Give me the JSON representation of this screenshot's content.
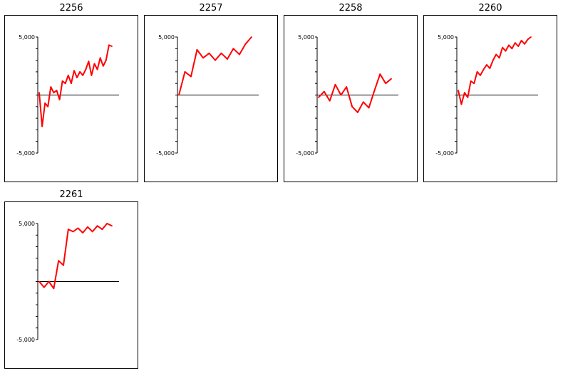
{
  "chart_data": [
    {
      "type": "line",
      "title": "2256",
      "ylim": [
        -5000,
        5000
      ],
      "ytick_labels": [
        "5,000",
        "-5,000"
      ],
      "series": [
        {
          "color": "#ff0000",
          "x": [
            0,
            1,
            2,
            3,
            4,
            5,
            6,
            7,
            8,
            9,
            10,
            11,
            12,
            13,
            14,
            15,
            16,
            17,
            18,
            19,
            20,
            21,
            22,
            23,
            24,
            25
          ],
          "y": [
            200,
            -2700,
            -700,
            -1000,
            700,
            200,
            400,
            -400,
            1200,
            1000,
            1700,
            1000,
            2100,
            1500,
            2000,
            1700,
            2200,
            2900,
            1700,
            2700,
            2200,
            3200,
            2500,
            3000,
            4300,
            4200
          ]
        }
      ]
    },
    {
      "type": "line",
      "title": "2257",
      "ylim": [
        -5000,
        5000
      ],
      "ytick_labels": [
        "5,000",
        "-5,000"
      ],
      "series": [
        {
          "color": "#ff0000",
          "x": [
            0,
            1,
            2,
            3,
            4,
            5,
            6,
            7,
            8,
            9,
            10,
            11,
            12
          ],
          "y": [
            0,
            2000,
            1600,
            3900,
            3200,
            3600,
            3000,
            3600,
            3100,
            4000,
            3500,
            4400,
            5000
          ]
        }
      ]
    },
    {
      "type": "line",
      "title": "2258",
      "ylim": [
        -5000,
        5000
      ],
      "ytick_labels": [
        "5,000",
        "-5,000"
      ],
      "series": [
        {
          "color": "#ff0000",
          "x": [
            0,
            1,
            2,
            3,
            4,
            5,
            6,
            7,
            8,
            9,
            10,
            11,
            12,
            13
          ],
          "y": [
            -200,
            300,
            -500,
            900,
            0,
            700,
            -1000,
            -1500,
            -600,
            -1100,
            400,
            1800,
            1000,
            1400
          ]
        }
      ]
    },
    {
      "type": "line",
      "title": "2260",
      "ylim": [
        -5000,
        5000
      ],
      "ytick_labels": [
        "5,000",
        "-5,000"
      ],
      "series": [
        {
          "color": "#ff0000",
          "x": [
            0,
            1,
            2,
            3,
            4,
            5,
            6,
            7,
            8,
            9,
            10,
            11,
            12,
            13,
            14,
            15,
            16,
            17,
            18,
            19,
            20,
            21,
            22,
            23
          ],
          "y": [
            400,
            -800,
            200,
            -200,
            1200,
            1000,
            2000,
            1700,
            2200,
            2600,
            2300,
            3000,
            3500,
            3200,
            4100,
            3800,
            4300,
            4000,
            4500,
            4200,
            4700,
            4400,
            4800,
            5000
          ]
        }
      ]
    },
    {
      "type": "line",
      "title": "2261",
      "ylim": [
        -5000,
        5000
      ],
      "ytick_labels": [
        "5,000",
        "-5,000"
      ],
      "series": [
        {
          "color": "#ff0000",
          "x": [
            0,
            1,
            2,
            3,
            4,
            5,
            6,
            7,
            8,
            9,
            10,
            11,
            12,
            13,
            14,
            15
          ],
          "y": [
            0,
            -500,
            0,
            -600,
            1800,
            1400,
            4500,
            4300,
            4600,
            4200,
            4700,
            4300,
            4800,
            4500,
            5000,
            4800
          ]
        }
      ]
    }
  ]
}
